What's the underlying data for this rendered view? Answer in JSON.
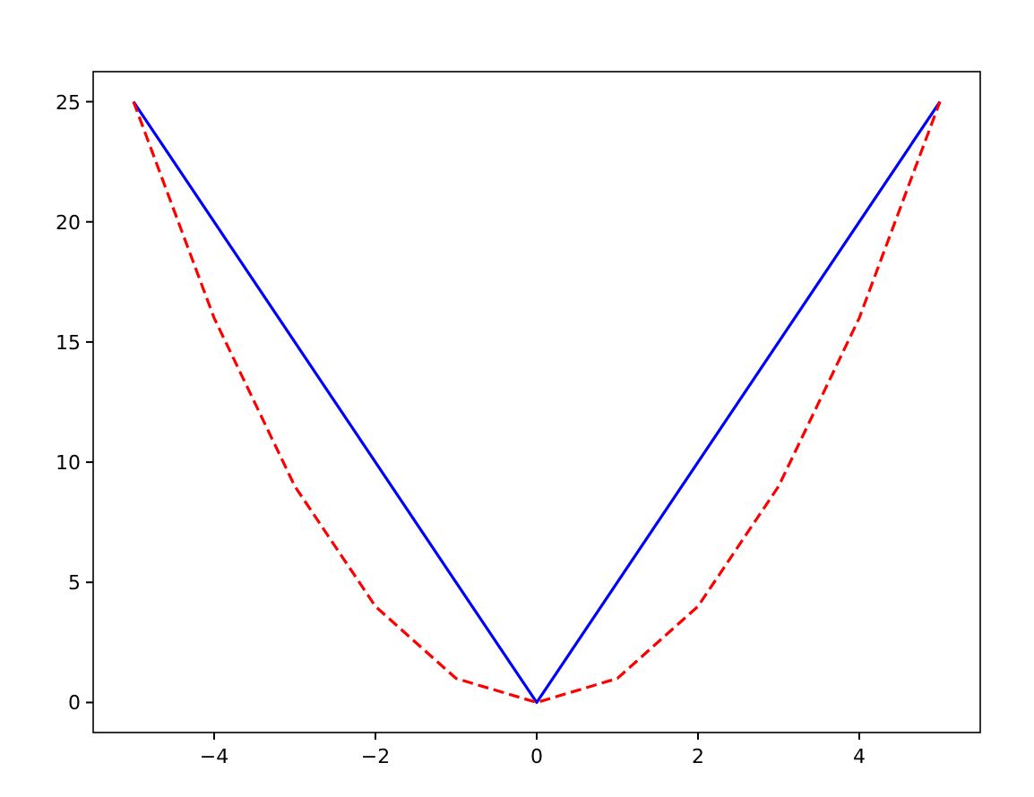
{
  "chart_data": {
    "type": "line",
    "xlim": [
      -5.5,
      5.5
    ],
    "ylim": [
      -1.25,
      26.25
    ],
    "xticks": [
      {
        "value": -4,
        "label": "−4"
      },
      {
        "value": -2,
        "label": "−2"
      },
      0,
      2,
      4
    ],
    "yticks": [
      0,
      5,
      10,
      15,
      20,
      25
    ],
    "grid": false,
    "marker": "none",
    "series": [
      {
        "color": "#0000ff",
        "x": [
          -5,
          0,
          5
        ],
        "values": [
          25,
          0,
          25
        ],
        "line_style": "solid"
      },
      {
        "color": "#ff0000",
        "x": [
          -5,
          -4,
          -3,
          -2,
          -1,
          0,
          1,
          2,
          3,
          4,
          5
        ],
        "values": [
          25,
          16,
          9,
          4,
          1,
          0,
          1,
          4,
          9,
          16,
          25
        ],
        "line_style": "dashed"
      }
    ]
  }
}
